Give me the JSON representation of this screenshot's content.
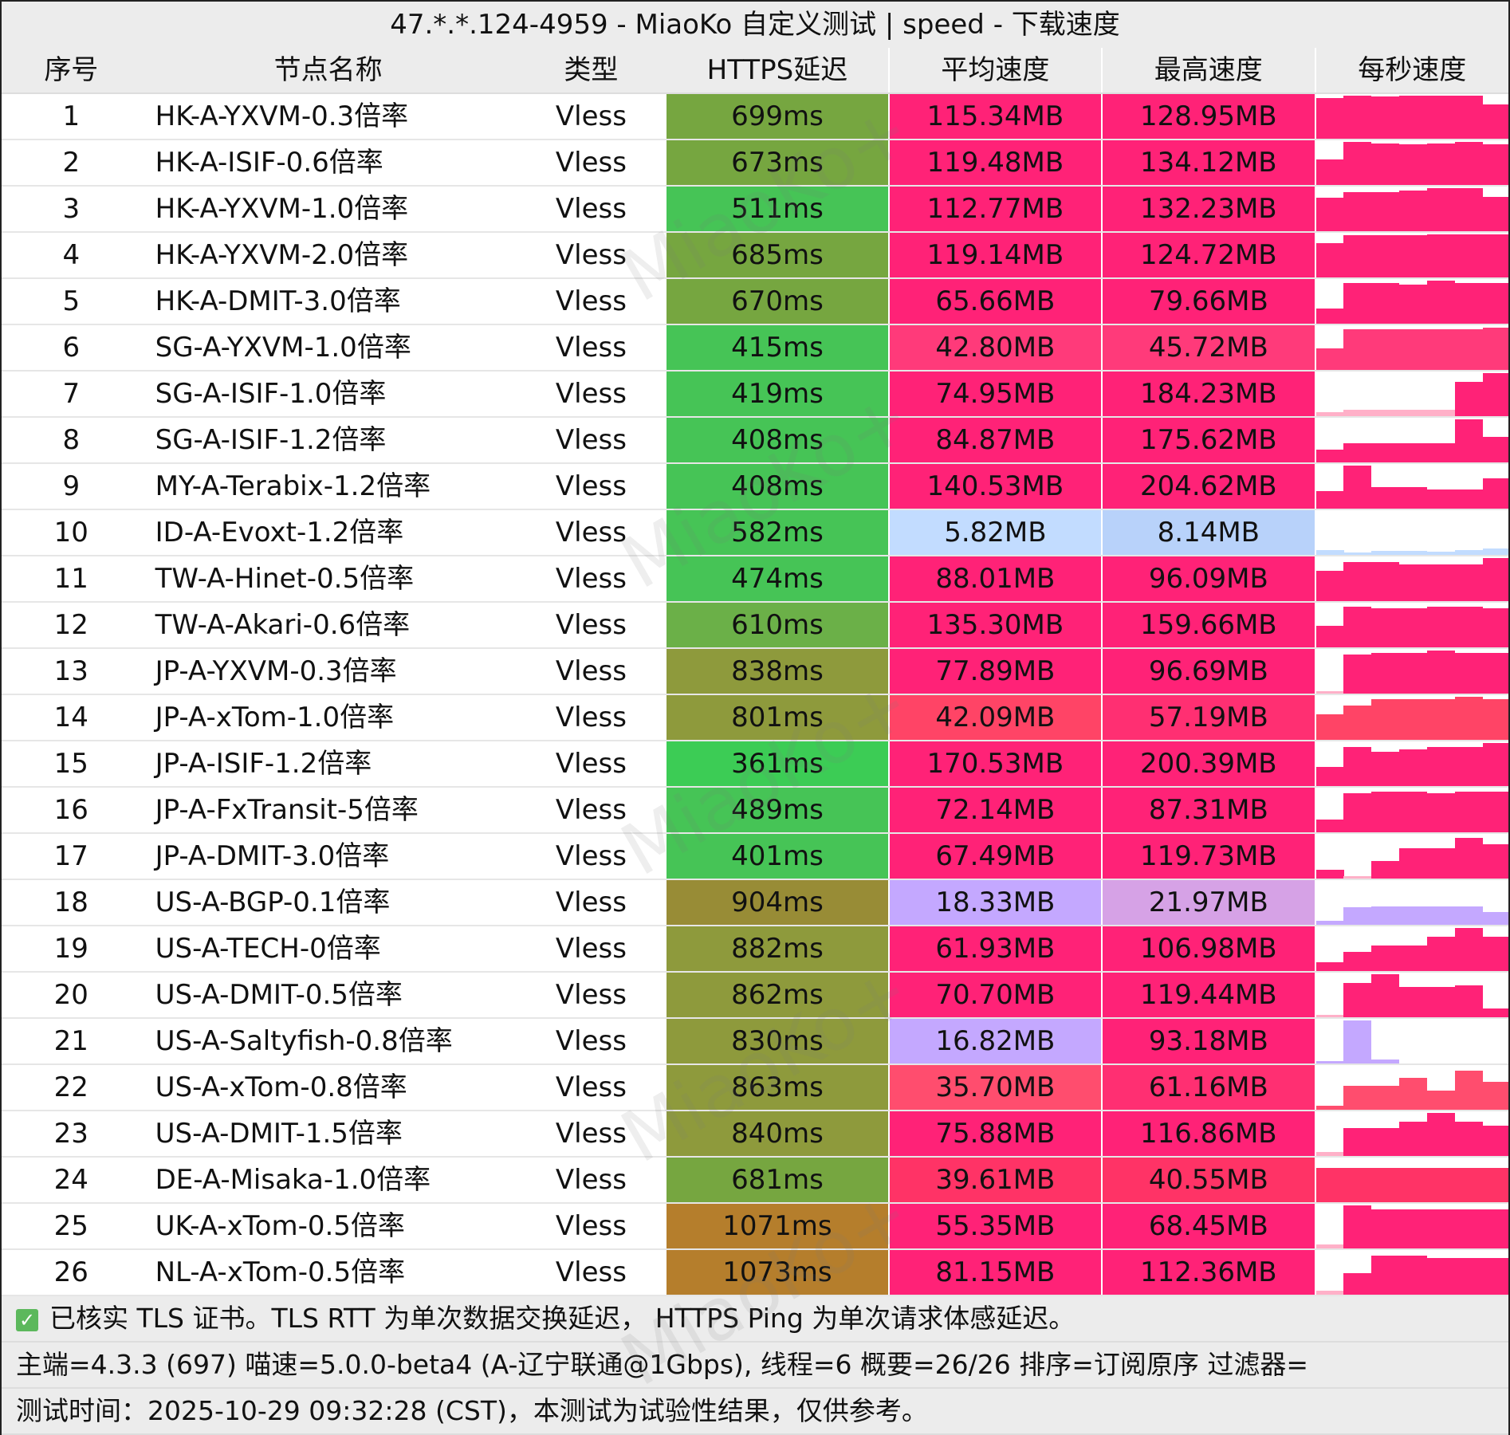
{
  "title": "47.*.*.124-4959 - MiaoKo 自定义测试 | speed - 下载速度",
  "watermark": "MiaoKo+",
  "headers": [
    "序号",
    "节点名称",
    "类型",
    "HTTPS延迟",
    "平均速度",
    "最高速度",
    "每秒速度"
  ],
  "rows": [
    {
      "n": "1",
      "name": "HK-A-YXVM-0.3倍率",
      "type": "Vless",
      "lat": "699ms",
      "latc": "#76a640",
      "avg": "115.34MB",
      "avgc": "#ff2277",
      "max": "128.95MB",
      "maxc": "#ff2277",
      "ps": [
        0.95,
        1,
        0.98,
        1,
        1,
        1,
        0.8
      ]
    },
    {
      "n": "2",
      "name": "HK-A-ISIF-0.6倍率",
      "type": "Vless",
      "lat": "673ms",
      "latc": "#76a640",
      "avg": "119.48MB",
      "avgc": "#ff2277",
      "max": "134.12MB",
      "maxc": "#ff2277",
      "ps": [
        0.6,
        1,
        0.97,
        0.95,
        0.97,
        1,
        0.95
      ]
    },
    {
      "n": "3",
      "name": "HK-A-YXVM-1.0倍率",
      "type": "Vless",
      "lat": "511ms",
      "latc": "#46c456",
      "avg": "112.77MB",
      "avgc": "#ff2277",
      "max": "132.23MB",
      "maxc": "#ff2277",
      "ps": [
        0.78,
        0.9,
        0.9,
        0.95,
        1,
        1,
        0.8
      ]
    },
    {
      "n": "4",
      "name": "HK-A-YXVM-2.0倍率",
      "type": "Vless",
      "lat": "685ms",
      "latc": "#76a640",
      "avg": "119.14MB",
      "avgc": "#ff2277",
      "max": "124.72MB",
      "maxc": "#ff2277",
      "ps": [
        0.8,
        0.98,
        0.98,
        0.98,
        1,
        1,
        1
      ]
    },
    {
      "n": "5",
      "name": "HK-A-DMIT-3.0倍率",
      "type": "Vless",
      "lat": "670ms",
      "latc": "#76a640",
      "avg": "65.66MB",
      "avgc": "#ff2277",
      "max": "79.66MB",
      "maxc": "#ff2277",
      "ps": [
        0.35,
        0.95,
        0.95,
        0.9,
        1,
        0.95,
        0.95
      ]
    },
    {
      "n": "6",
      "name": "SG-A-YXVM-1.0倍率",
      "type": "Vless",
      "lat": "415ms",
      "latc": "#46c456",
      "avg": "42.80MB",
      "avgc": "#ff3a7a",
      "max": "45.72MB",
      "maxc": "#ff3a7a",
      "ps": [
        0.5,
        0.95,
        0.95,
        0.95,
        0.95,
        0.95,
        0.98
      ]
    },
    {
      "n": "7",
      "name": "SG-A-ISIF-1.0倍率",
      "type": "Vless",
      "lat": "419ms",
      "latc": "#46c456",
      "avg": "74.95MB",
      "avgc": "#ff2277",
      "max": "184.23MB",
      "maxc": "#ff2277",
      "ps": [
        0.1,
        0.15,
        0.15,
        0.15,
        0.15,
        0.8,
        1
      ]
    },
    {
      "n": "8",
      "name": "SG-A-ISIF-1.2倍率",
      "type": "Vless",
      "lat": "408ms",
      "latc": "#46c456",
      "avg": "84.87MB",
      "avgc": "#ff2277",
      "max": "175.62MB",
      "maxc": "#ff2277",
      "ps": [
        0.3,
        0.45,
        0.45,
        0.45,
        0.45,
        1,
        0.6
      ]
    },
    {
      "n": "9",
      "name": "MY-A-Terabix-1.2倍率",
      "type": "Vless",
      "lat": "408ms",
      "latc": "#46c456",
      "avg": "140.53MB",
      "avgc": "#ff2277",
      "max": "204.62MB",
      "maxc": "#ff2277",
      "ps": [
        0.4,
        1,
        0.5,
        0.5,
        0.45,
        0.45,
        0.7
      ]
    },
    {
      "n": "10",
      "name": "ID-A-Evoxt-1.2倍率",
      "type": "Vless",
      "lat": "582ms",
      "latc": "#46c456",
      "avg": "5.82MB",
      "avgc": "#c2dcff",
      "max": "8.14MB",
      "maxc": "#b8d2fa",
      "ps": [
        0.12,
        0.06,
        0.1,
        0.1,
        0.08,
        0.12,
        0.15
      ]
    },
    {
      "n": "11",
      "name": "TW-A-Hinet-0.5倍率",
      "type": "Vless",
      "lat": "474ms",
      "latc": "#46c456",
      "avg": "88.01MB",
      "avgc": "#ff2277",
      "max": "96.09MB",
      "maxc": "#ff2277",
      "ps": [
        0.7,
        0.9,
        0.9,
        0.85,
        0.85,
        0.85,
        1
      ]
    },
    {
      "n": "12",
      "name": "TW-A-Akari-0.6倍率",
      "type": "Vless",
      "lat": "610ms",
      "latc": "#6bb048",
      "avg": "135.30MB",
      "avgc": "#ff2277",
      "max": "159.66MB",
      "maxc": "#ff2277",
      "ps": [
        0.5,
        0.95,
        0.9,
        0.9,
        0.95,
        0.95,
        0.9
      ]
    },
    {
      "n": "13",
      "name": "JP-A-YXVM-0.3倍率",
      "type": "Vless",
      "lat": "838ms",
      "latc": "#8e9a3c",
      "avg": "77.89MB",
      "avgc": "#ff2277",
      "max": "96.69MB",
      "maxc": "#ff2277",
      "ps": [
        0.05,
        0.9,
        0.95,
        0.95,
        1,
        0.95,
        0.95
      ]
    },
    {
      "n": "14",
      "name": "JP-A-xTom-1.0倍率",
      "type": "Vless",
      "lat": "801ms",
      "latc": "#8e9a3c",
      "avg": "42.09MB",
      "avgc": "#ff4466",
      "max": "57.19MB",
      "maxc": "#ff2f72",
      "ps": [
        0.6,
        0.8,
        0.95,
        0.95,
        0.95,
        1,
        0.95
      ]
    },
    {
      "n": "15",
      "name": "JP-A-ISIF-1.2倍率",
      "type": "Vless",
      "lat": "361ms",
      "latc": "#3ccc55",
      "avg": "170.53MB",
      "avgc": "#ff2277",
      "max": "200.39MB",
      "maxc": "#ff2277",
      "ps": [
        0.45,
        0.9,
        0.8,
        0.85,
        0.9,
        0.9,
        1
      ]
    },
    {
      "n": "16",
      "name": "JP-A-FxTransit-5倍率",
      "type": "Vless",
      "lat": "489ms",
      "latc": "#46c456",
      "avg": "72.14MB",
      "avgc": "#ff2277",
      "max": "87.31MB",
      "maxc": "#ff2277",
      "ps": [
        0.3,
        0.9,
        0.95,
        0.95,
        0.9,
        0.95,
        0.95
      ]
    },
    {
      "n": "17",
      "name": "JP-A-DMIT-3.0倍率",
      "type": "Vless",
      "lat": "401ms",
      "latc": "#46c456",
      "avg": "67.49MB",
      "avgc": "#ff2277",
      "max": "119.73MB",
      "maxc": "#ff2277",
      "ps": [
        0.2,
        0.05,
        0.4,
        0.7,
        0.7,
        0.95,
        0.8
      ]
    },
    {
      "n": "18",
      "name": "US-A-BGP-0.1倍率",
      "type": "Vless",
      "lat": "904ms",
      "latc": "#988c36",
      "avg": "18.33MB",
      "avgc": "#c4a8ff",
      "max": "21.97MB",
      "maxc": "#d6a2e6",
      "ps": [
        0.1,
        0.4,
        0.42,
        0.42,
        0.42,
        0.42,
        0.3
      ]
    },
    {
      "n": "19",
      "name": "US-A-TECH-0倍率",
      "type": "Vless",
      "lat": "882ms",
      "latc": "#8e9a3c",
      "avg": "61.93MB",
      "avgc": "#ff2277",
      "max": "106.98MB",
      "maxc": "#ff2277",
      "ps": [
        0.2,
        0.45,
        0.6,
        0.6,
        0.8,
        1,
        0.8
      ]
    },
    {
      "n": "20",
      "name": "US-A-DMIT-0.5倍率",
      "type": "Vless",
      "lat": "862ms",
      "latc": "#8e9a3c",
      "avg": "70.70MB",
      "avgc": "#ff2277",
      "max": "119.44MB",
      "maxc": "#ff2277",
      "ps": [
        0.05,
        0.8,
        1,
        0.7,
        0.7,
        0.75,
        0.2
      ]
    },
    {
      "n": "21",
      "name": "US-A-Saltyfish-0.8倍率",
      "type": "Vless",
      "lat": "830ms",
      "latc": "#8e9a3c",
      "avg": "16.82MB",
      "avgc": "#c4a8ff",
      "max": "93.18MB",
      "maxc": "#ff2277",
      "ps": [
        0.05,
        1,
        0.1,
        0,
        0,
        0,
        0
      ]
    },
    {
      "n": "22",
      "name": "US-A-xTom-0.8倍率",
      "type": "Vless",
      "lat": "863ms",
      "latc": "#8e9a3c",
      "avg": "35.70MB",
      "avgc": "#ff4d6e",
      "max": "61.16MB",
      "maxc": "#ff2f72",
      "ps": [
        0.1,
        0.55,
        0.55,
        0.75,
        0.45,
        0.9,
        0.65
      ]
    },
    {
      "n": "23",
      "name": "US-A-DMIT-1.5倍率",
      "type": "Vless",
      "lat": "840ms",
      "latc": "#8e9a3c",
      "avg": "75.88MB",
      "avgc": "#ff2277",
      "max": "116.86MB",
      "maxc": "#ff2277",
      "ps": [
        0.1,
        0.65,
        0.65,
        0.8,
        1,
        0.8,
        0.7
      ]
    },
    {
      "n": "24",
      "name": "DE-A-Misaka-1.0倍率",
      "type": "Vless",
      "lat": "681ms",
      "latc": "#76a640",
      "avg": "39.61MB",
      "avgc": "#ff3366",
      "max": "40.55MB",
      "maxc": "#ff3366",
      "ps": [
        0.8,
        0.8,
        0.8,
        0.8,
        0.8,
        0.8,
        0.8
      ]
    },
    {
      "n": "25",
      "name": "UK-A-xTom-0.5倍率",
      "type": "Vless",
      "lat": "1071ms",
      "latc": "#b57e2c",
      "avg": "55.35MB",
      "avgc": "#ff2277",
      "max": "68.45MB",
      "maxc": "#ff2277",
      "ps": [
        0.1,
        1,
        0.9,
        0.9,
        0.9,
        0.9,
        0.9
      ]
    },
    {
      "n": "26",
      "name": "NL-A-xTom-0.5倍率",
      "type": "Vless",
      "lat": "1073ms",
      "latc": "#b57e2c",
      "avg": "81.15MB",
      "avgc": "#ff2277",
      "max": "112.36MB",
      "maxc": "#ff2277",
      "ps": [
        0.1,
        0.5,
        0.9,
        0.9,
        0.85,
        0.85,
        0.85
      ]
    }
  ],
  "footer": {
    "check_icon": "checkmark-icon",
    "line1": "已核实 TLS 证书。TLS RTT 为单次数据交换延迟， HTTPS Ping 为单次请求体感延迟。",
    "line2": "主端=4.3.3 (697) 喵速=5.0.0-beta4 (A-辽宁联通@1Gbps), 线程=6 概要=26/26 排序=订阅原序 过滤器=",
    "line3": "测试时间：2025-10-29 09:32:28 (CST)，本测试为试验性结果，仅供参考。"
  }
}
